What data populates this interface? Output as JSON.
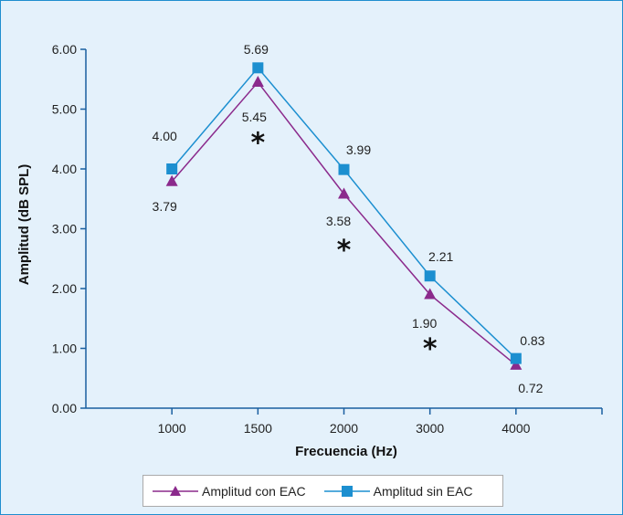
{
  "chart_data": {
    "type": "line",
    "xlabel": "Frecuencia (Hz)",
    "ylabel": "Amplitud (dB SPL)",
    "categories": [
      "1000",
      "1500",
      "2000",
      "3000",
      "4000"
    ],
    "ylim": [
      0,
      6
    ],
    "yticks": [
      "0.00",
      "1.00",
      "2.00",
      "3.00",
      "4.00",
      "5.00",
      "6.00"
    ],
    "series": [
      {
        "name": "Amplitud con EAC",
        "values": [
          3.79,
          5.45,
          3.58,
          1.9,
          0.72
        ],
        "labels": [
          "3.79",
          "5.45",
          "3.58",
          "1.90",
          "0.72"
        ],
        "color": "#8b2a8c",
        "marker": "triangle"
      },
      {
        "name": "Amplitud sin EAC",
        "values": [
          4.0,
          5.69,
          3.99,
          2.21,
          0.83
        ],
        "labels": [
          "4.00",
          "5.69",
          "3.99",
          "2.21",
          "0.83"
        ],
        "color": "#1c8fd0",
        "marker": "square"
      }
    ],
    "annotations": [
      {
        "category": "1500",
        "y": 4.5,
        "text": "*"
      },
      {
        "category": "2000",
        "y": 2.7,
        "text": "*"
      },
      {
        "category": "3000",
        "y": 1.05,
        "text": "*"
      }
    ],
    "legend_position": "bottom"
  },
  "legend": {
    "items": [
      {
        "label": "Amplitud con EAC"
      },
      {
        "label": "Amplitud sin EAC"
      }
    ]
  }
}
